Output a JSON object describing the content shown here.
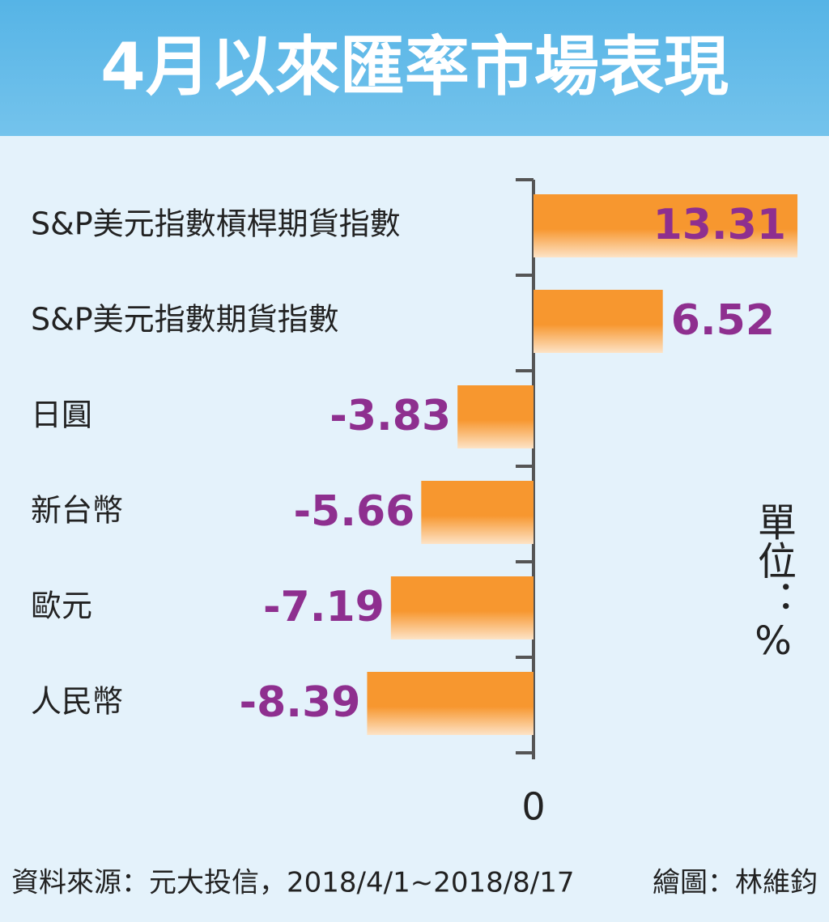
{
  "chart_data": {
    "type": "bar",
    "orientation": "horizontal",
    "title": "4月以來匯率市場表現",
    "categories": [
      "S&P美元指數槓桿期貨指數",
      "S&P美元指數期貨指數",
      "日圓",
      "新台幣",
      "歐元",
      "人民幣"
    ],
    "values": [
      13.31,
      6.52,
      -3.83,
      -5.66,
      -7.19,
      -8.39
    ],
    "color": "#f7972f",
    "label_color": "#8e2f8f",
    "xlim": [
      -26.9,
      14.9
    ],
    "xticks": [
      0
    ],
    "unit_label": "單位：%",
    "source": "資料來源：元大投信，2018/4/1~2018/8/17",
    "credit": "繪圖：林維鈞"
  }
}
